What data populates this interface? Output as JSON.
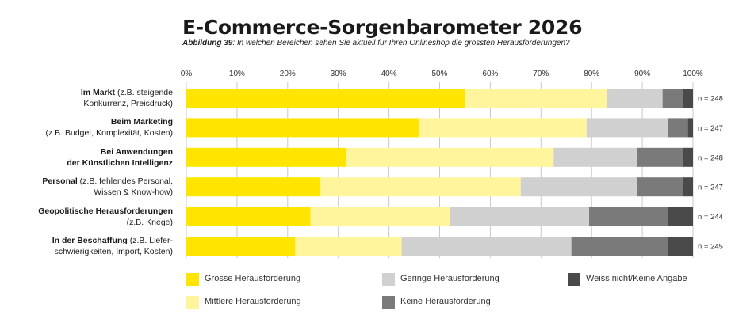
{
  "header": {
    "title": "E-Commerce-Sorgenbarometer 2026",
    "figure_label": "Abbildung 39",
    "question": ": In welchen Bereichen sehen Sie aktuell für Ihren Onlineshop die grössten Herausforderungen?"
  },
  "chart_data": {
    "type": "bar",
    "orientation": "horizontal",
    "stacked": true,
    "xlim": [
      0,
      100
    ],
    "x_ticks": [
      "0%",
      "10%",
      "20%",
      "30%",
      "40%",
      "50%",
      "60%",
      "70%",
      "80%",
      "90%",
      "100%"
    ],
    "categories": [
      {
        "bold": "Im Markt",
        "rest": " (z.B. steigende",
        "line2": "Konkurrenz, Preisdruck)",
        "line2_bold": false
      },
      {
        "bold": "Beim Marketing",
        "rest": "",
        "line2": "(z.B. Budget, Komplexität, Kosten)",
        "line2_bold": false
      },
      {
        "bold": "Bei Anwendungen",
        "rest": "",
        "line2": "der Künstlichen Intelligenz",
        "line2_bold": true
      },
      {
        "bold": "Personal",
        "rest": " (z.B. fehlendes Personal,",
        "line2": "Wissen & Know-how)",
        "line2_bold": false
      },
      {
        "bold": "Geopolitische Herausforderungen",
        "rest": "",
        "line2": "(z.B. Kriege)",
        "line2_bold": false
      },
      {
        "bold": "In der Beschaffung",
        "rest": " (z.B. Liefer-",
        "line2": "schwierigkeiten, Import, Kosten)",
        "line2_bold": false
      }
    ],
    "n_labels": [
      "n = 248",
      "n = 247",
      "n = 248",
      "n = 247",
      "n = 244",
      "n = 245"
    ],
    "series": [
      {
        "name": "Grosse Herausforderung",
        "color": "#ffe500",
        "values": [
          55,
          46,
          31.5,
          26.5,
          24.5,
          21.5
        ]
      },
      {
        "name": "Mittlere Herausforderung",
        "color": "#fff59d",
        "values": [
          28,
          33,
          41,
          39.5,
          27.5,
          21
        ]
      },
      {
        "name": "Geringe Herausforderung",
        "color": "#d0d0d0",
        "values": [
          11,
          16,
          16.5,
          23,
          27.5,
          33.5
        ]
      },
      {
        "name": "Keine Herausforderung",
        "color": "#7a7a7a",
        "values": [
          4,
          4,
          9,
          9,
          15.5,
          19
        ]
      },
      {
        "name": "Weiss nicht / Keine Angabe",
        "color": "#4a4a4a",
        "values": [
          2,
          1,
          2,
          2,
          5,
          5
        ]
      }
    ],
    "legend_labels": [
      "Grosse Herausforderung",
      "Mittlere Herausforderung",
      "Geringe Herausforderung",
      "Keine Herausforderung",
      "Weiss nicht/Keine Angabe"
    ],
    "grid": true,
    "legend_position": "bottom"
  }
}
